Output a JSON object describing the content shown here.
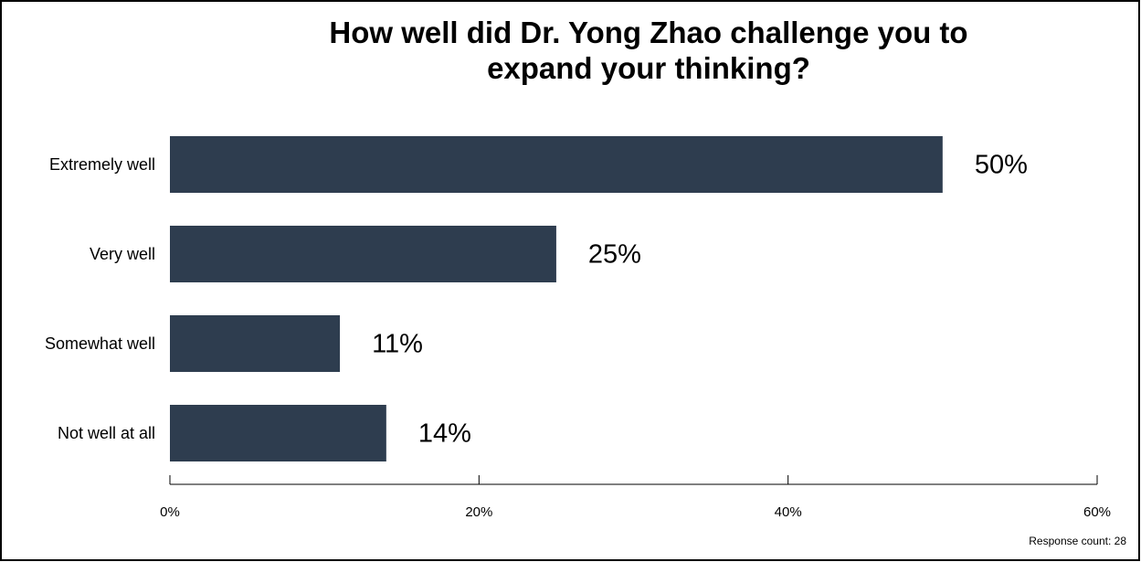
{
  "chart_data": {
    "type": "bar",
    "orientation": "horizontal",
    "title": "How well did Dr. Yong Zhao challenge you to expand your thinking?",
    "categories": [
      "Extremely well",
      "Very well",
      "Somewhat well",
      "Not well at all"
    ],
    "values": [
      50,
      25,
      11,
      14
    ],
    "value_labels": [
      "50%",
      "25%",
      "11%",
      "14%"
    ],
    "color": "#2e3d4f",
    "xlim": [
      0,
      60
    ],
    "xticks": [
      {
        "value": 0,
        "label": "0%"
      },
      {
        "value": 20,
        "label": "20%"
      },
      {
        "value": 40,
        "label": "40%"
      },
      {
        "value": 60,
        "label": "60%"
      }
    ],
    "grid": false,
    "footnote": "Response count: 28"
  }
}
